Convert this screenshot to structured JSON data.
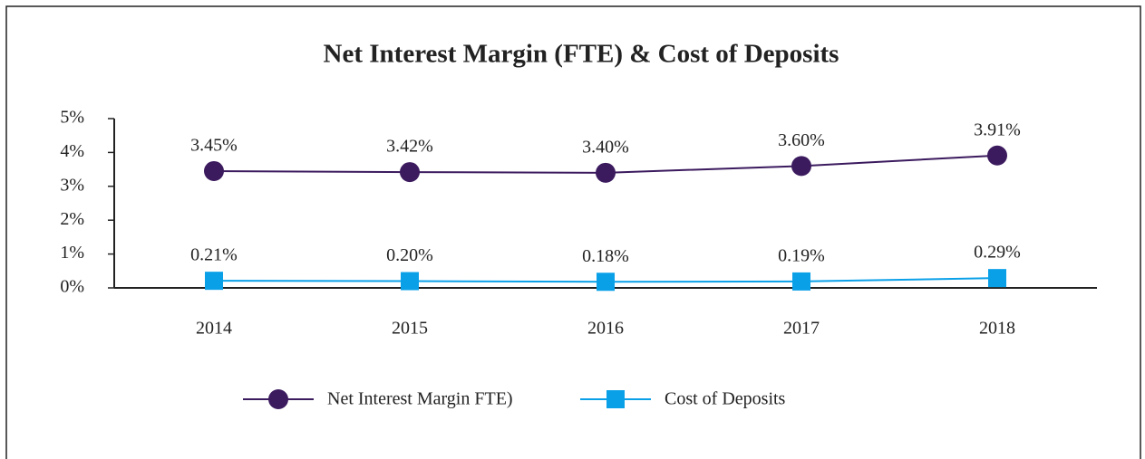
{
  "chart_data": {
    "type": "line",
    "title": "Net Interest Margin (FTE) & Cost of Deposits",
    "categories": [
      "2014",
      "2015",
      "2016",
      "2017",
      "2018"
    ],
    "series": [
      {
        "name": "Net Interest Margin FTE)",
        "color": "#3b1a5e",
        "marker": "circle",
        "values": [
          3.45,
          3.42,
          3.4,
          3.6,
          3.91
        ],
        "value_labels": [
          "3.45%",
          "3.42%",
          "3.40%",
          "3.60%",
          "3.91%"
        ]
      },
      {
        "name": "Cost of Deposits",
        "color": "#0aa0e8",
        "marker": "square",
        "values": [
          0.21,
          0.2,
          0.18,
          0.19,
          0.29
        ],
        "value_labels": [
          "0.21%",
          "0.20%",
          "0.18%",
          "0.19%",
          "0.29%"
        ]
      }
    ],
    "ylim": [
      0,
      5
    ],
    "yticks": [
      {
        "value": 0,
        "label": "0%"
      },
      {
        "value": 1,
        "label": "1%"
      },
      {
        "value": 2,
        "label": "2%"
      },
      {
        "value": 3,
        "label": "3%"
      },
      {
        "value": 4,
        "label": "4%"
      },
      {
        "value": 5,
        "label": "5%"
      }
    ],
    "legend": "bottom"
  }
}
